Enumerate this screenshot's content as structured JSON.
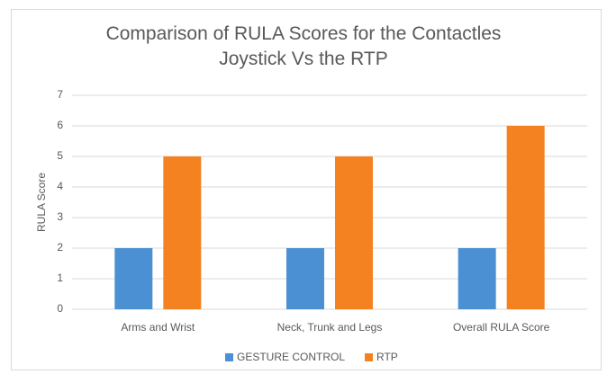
{
  "chart_data": {
    "type": "bar",
    "title": "Comparison of RULA Scores for the Contactles Joystick Vs the RTP",
    "y_label": "RULA Score",
    "categories": [
      "Arms and Wrist",
      "Neck, Trunk and Legs",
      "Overall RULA Score"
    ],
    "series": [
      {
        "name": "GESTURE CONTROL",
        "color": "#4a90d2",
        "values": [
          2,
          2,
          2
        ]
      },
      {
        "name": "RTP",
        "color": "#f58220",
        "values": [
          5,
          5,
          6
        ]
      }
    ],
    "ylim": [
      0,
      7
    ],
    "yticks": [
      0,
      1,
      2,
      3,
      4,
      5,
      6,
      7
    ],
    "grid": true,
    "legend": "bottom"
  }
}
